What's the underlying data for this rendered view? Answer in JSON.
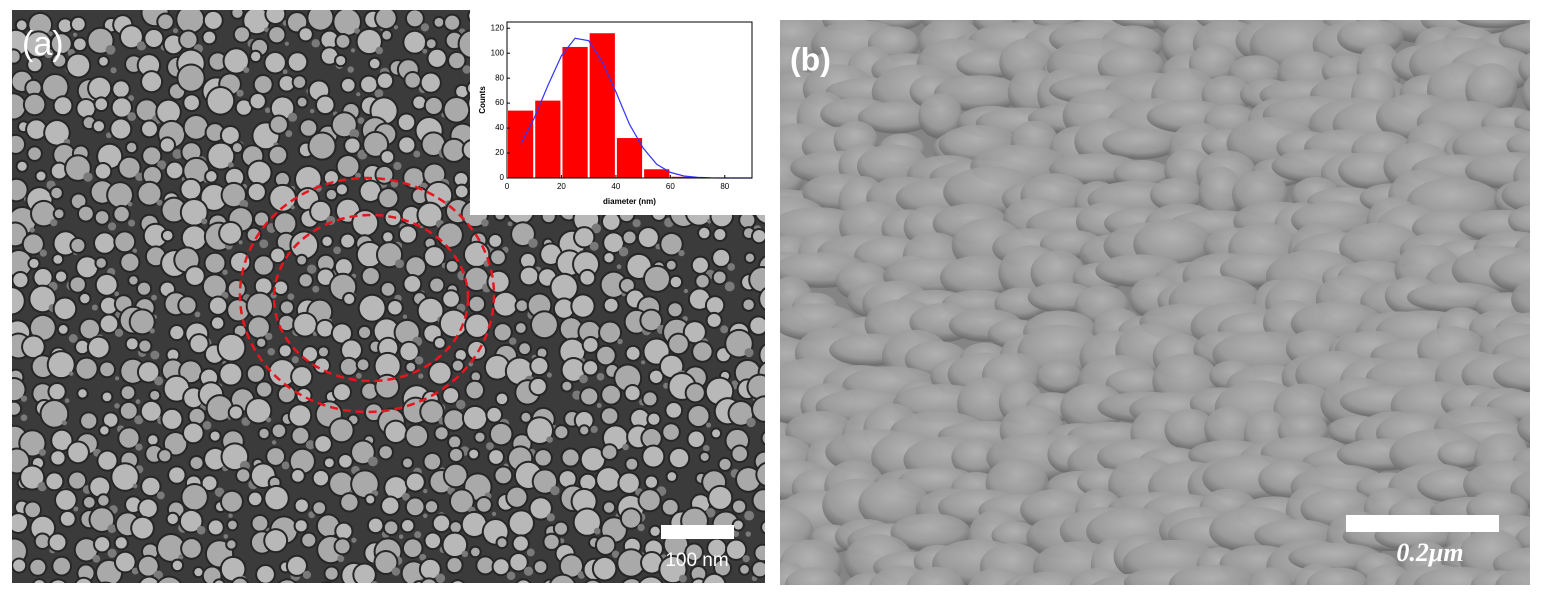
{
  "panels": [
    {
      "label": "(a)",
      "scale_bar": "100 nm"
    },
    {
      "label": "(b)",
      "scale_bar": "0.2μm"
    }
  ],
  "chart_data": {
    "type": "histogram",
    "ylabel": "Counts",
    "xlabel": "diameter (nm)",
    "bins": [
      0,
      10,
      20,
      30,
      40,
      50,
      60,
      70
    ],
    "values": [
      54,
      62,
      105,
      116,
      32,
      7,
      1
    ],
    "color": "#ff0000",
    "fit": {
      "x": [
        5,
        10,
        15,
        20,
        25,
        30,
        35,
        40,
        45,
        50,
        55,
        60,
        65,
        70,
        75,
        80,
        85,
        90
      ],
      "values": [
        27,
        48,
        74,
        98,
        112,
        110,
        93,
        69,
        43,
        24,
        11,
        4.5,
        1.6,
        0.5,
        0.1,
        0,
        0,
        0
      ],
      "color": "#3333ff"
    },
    "xlim": [
      0,
      90
    ],
    "ylim": [
      0,
      125
    ],
    "xticks": [
      0,
      20,
      40,
      60,
      80
    ],
    "yticks": [
      0,
      20,
      40,
      60,
      80,
      100,
      120
    ]
  }
}
